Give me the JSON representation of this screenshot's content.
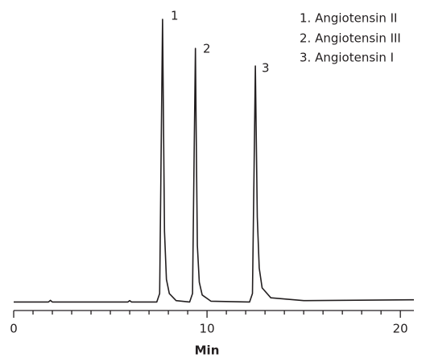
{
  "chart_data": {
    "type": "line",
    "x_label": "Min",
    "xlim": [
      0,
      20.7
    ],
    "ylim": [
      -3,
      100
    ],
    "xticks": [
      0,
      10,
      20
    ],
    "xminorticks": [
      1,
      2,
      3,
      4,
      5,
      6,
      7,
      8,
      9,
      11,
      12,
      13,
      14,
      15,
      16,
      17,
      18,
      19
    ],
    "color": "#231f20",
    "x": [
      0,
      1.8,
      1.9,
      2.0,
      5.9,
      6.0,
      6.1,
      7.4,
      7.55,
      7.63,
      7.7,
      7.74,
      7.8,
      7.9,
      8.05,
      8.4,
      9.1,
      9.25,
      9.33,
      9.4,
      9.44,
      9.5,
      9.6,
      9.75,
      10.2,
      12.2,
      12.35,
      12.43,
      12.5,
      12.54,
      12.6,
      12.7,
      12.85,
      13.3,
      15.0,
      20.7
    ],
    "values": [
      0,
      0,
      0.6,
      0,
      0,
      0.5,
      0,
      0,
      3,
      55,
      100,
      70,
      25,
      8,
      3,
      0.5,
      0,
      3,
      50,
      89.7,
      60,
      20,
      7,
      2.5,
      0.3,
      0,
      3,
      45,
      83.5,
      62,
      30,
      12,
      5,
      1.5,
      0.5,
      0.8
    ],
    "annotations": [
      "1",
      "2",
      "3"
    ],
    "legend": [
      "1.  Angiotensin II",
      "2.  Angiotensin III",
      "3.  Angiotensin I"
    ]
  }
}
